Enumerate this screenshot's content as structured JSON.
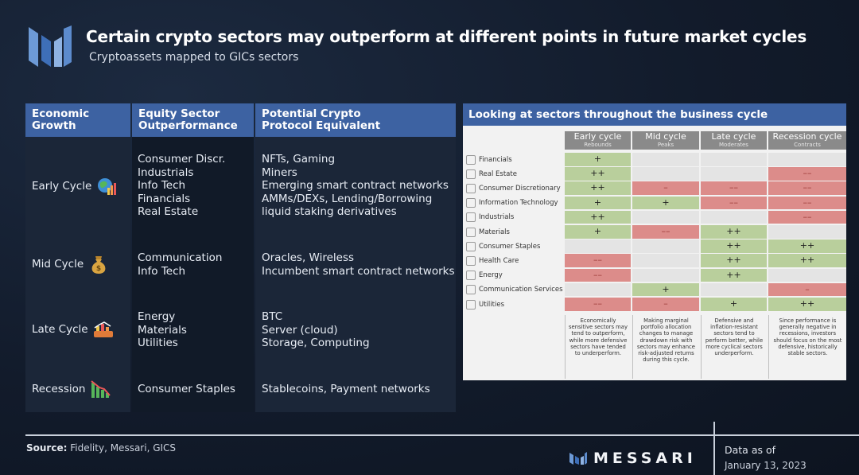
{
  "header": {
    "title": "Certain crypto sectors may outperform at different points in future market cycles",
    "subtitle": "Cryptoassets mapped to GICs sectors"
  },
  "left_table": {
    "headers": [
      "Economic\nGrowth",
      "Equity Sector\nOutperformance",
      "Potential Crypto\nProtocol Equivalent"
    ],
    "rows": [
      {
        "cycle": "Early Cycle",
        "icon": "globe-chart-icon",
        "sectors": [
          "Consumer Discr.",
          "Industrials",
          "Info Tech",
          "Financials",
          "Real Estate"
        ],
        "crypto": [
          "NFTs, Gaming",
          "Miners",
          "Emerging smart contract networks",
          "AMMs/DEXs, Lending/Borrowing",
          "liquid staking derivatives"
        ]
      },
      {
        "cycle": "Mid Cycle",
        "icon": "money-bag-icon",
        "sectors": [
          "Communication",
          "Info Tech"
        ],
        "crypto": [
          "Oracles, Wireless",
          "Incumbent smart contract networks"
        ]
      },
      {
        "cycle": "Late Cycle",
        "icon": "chart-hand-icon",
        "sectors": [
          "Energy",
          "Materials",
          "Utilities"
        ],
        "crypto": [
          "BTC",
          "Server (cloud)",
          "Storage, Computing"
        ]
      },
      {
        "cycle": "Recession",
        "icon": "falling-bars-icon",
        "sectors": [
          "Consumer Staples"
        ],
        "crypto": [
          "Stablecoins, Payment networks"
        ]
      }
    ]
  },
  "chart_data": {
    "type": "table",
    "title": "Looking at sectors throughout the business cycle",
    "columns": [
      {
        "name": "Early cycle",
        "sub": "Rebounds"
      },
      {
        "name": "Mid cycle",
        "sub": "Peaks"
      },
      {
        "name": "Late cycle",
        "sub": "Moderates"
      },
      {
        "name": "Recession cycle",
        "sub": "Contracts"
      }
    ],
    "rows": [
      {
        "sector": "Financials",
        "values": [
          "+",
          "",
          "",
          ""
        ]
      },
      {
        "sector": "Real Estate",
        "values": [
          "++",
          "",
          "",
          "––"
        ]
      },
      {
        "sector": "Consumer Discretionary",
        "values": [
          "++",
          "–",
          "––",
          "––"
        ]
      },
      {
        "sector": "Information Technology",
        "values": [
          "+",
          "+",
          "––",
          "––"
        ]
      },
      {
        "sector": "Industrials",
        "values": [
          "++",
          "",
          "",
          "––"
        ]
      },
      {
        "sector": "Materials",
        "values": [
          "+",
          "––",
          "++",
          ""
        ]
      },
      {
        "sector": "Consumer Staples",
        "values": [
          "",
          "",
          "++",
          "++"
        ]
      },
      {
        "sector": "Health Care",
        "values": [
          "––",
          "",
          "++",
          "++"
        ]
      },
      {
        "sector": "Energy",
        "values": [
          "––",
          "",
          "++",
          ""
        ]
      },
      {
        "sector": "Communication Services",
        "values": [
          "",
          "+",
          "",
          "–"
        ]
      },
      {
        "sector": "Utilities",
        "values": [
          "––",
          "–",
          "+",
          "++"
        ]
      }
    ],
    "notes": [
      "Economically sensitive sectors may tend to outperform, while more defensive sectors have tended to underperform.",
      "Making marginal portfolio allocation changes to manage drawdown risk with sectors may enhance risk-adjusted returns during this cycle.",
      "Defensive and inflation-resistant sectors tend to perform better, while more cyclical sectors underperform.",
      "Since performance is generally negative in recessions, investors should focus on the most defensive, historically stable sectors."
    ],
    "colors": {
      "positive": "#b9cf9c",
      "negative": "#dc8c8a",
      "neutral": "#e4e4e4"
    }
  },
  "footer": {
    "source_label": "Source:",
    "source_text": "Fidelity, Messari, GICS",
    "brand": "MESSARI",
    "data_as_label": "Data as of",
    "data_date": "January 13, 2023"
  },
  "colors": {
    "header_blue": "#3d62a2",
    "background": "#121b2b"
  }
}
